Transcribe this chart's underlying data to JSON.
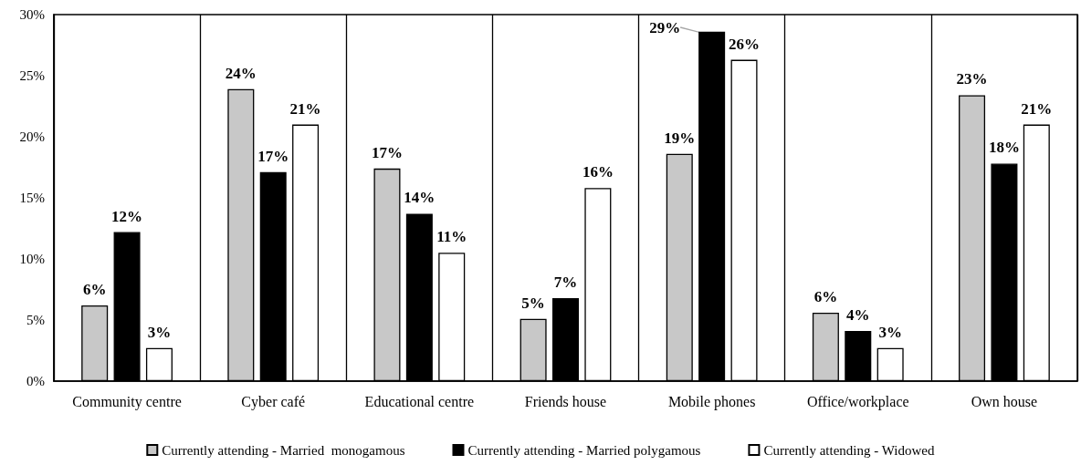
{
  "chart_data": {
    "type": "bar",
    "categories": [
      "Community centre",
      "Cyber café",
      "Educational centre",
      "Friends house",
      "Mobile phones",
      "Office/workplace",
      "Own house"
    ],
    "series": [
      {
        "name": "Currently attending - Married  monogamous",
        "color": "#c8c8c8",
        "values": [
          6.2,
          23.9,
          17.4,
          5.1,
          18.6,
          5.6,
          23.4
        ],
        "value_labels": [
          "6%",
          "24%",
          "17%",
          "5%",
          "19%",
          "6%",
          "23%"
        ]
      },
      {
        "name": "Currently attending - Married polygamous",
        "color": "#000000",
        "values": [
          12.2,
          17.1,
          13.7,
          6.8,
          28.6,
          4.1,
          17.8
        ],
        "value_labels": [
          "12%",
          "17%",
          "14%",
          "7%",
          "29%",
          "4%",
          "18%"
        ]
      },
      {
        "name": "Currently attending - Widowed",
        "color": "#ffffff",
        "values": [
          2.7,
          21.0,
          10.5,
          15.8,
          26.3,
          2.7,
          21.0
        ],
        "value_labels": [
          "3%",
          "21%",
          "11%",
          "16%",
          "26%",
          "3%",
          "21%"
        ]
      }
    ],
    "ylim": [
      0,
      30
    ],
    "yticks": [
      {
        "value": 0,
        "label": "0%"
      },
      {
        "value": 5,
        "label": "5%"
      },
      {
        "value": 10,
        "label": "10%"
      },
      {
        "value": 15,
        "label": "15%"
      },
      {
        "value": 20,
        "label": "20%"
      },
      {
        "value": 25,
        "label": "25%"
      },
      {
        "value": 30,
        "label": "30%"
      }
    ],
    "grid": "x",
    "legend": "bottom"
  }
}
